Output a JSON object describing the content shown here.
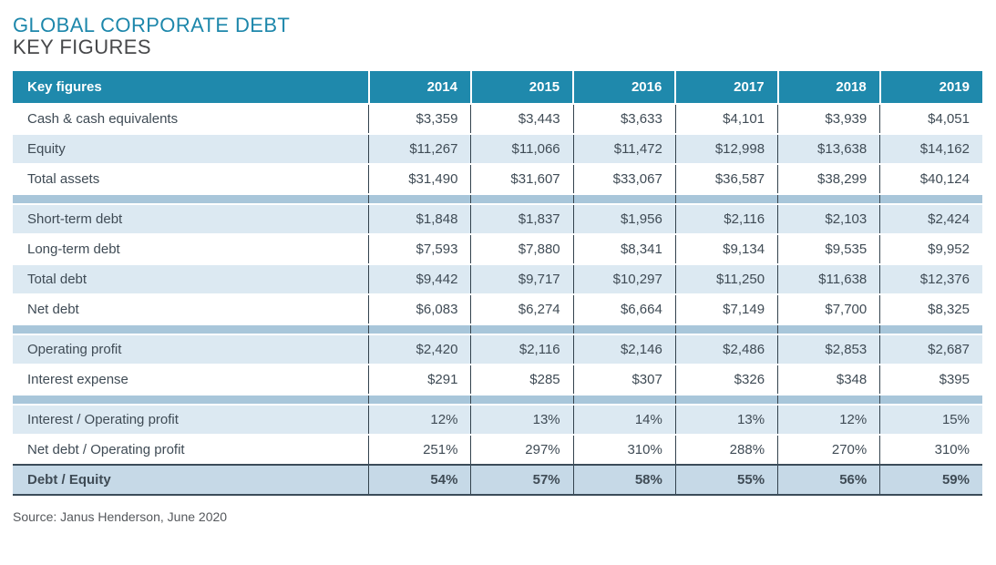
{
  "page": {
    "title": "GLOBAL CORPORATE DEBT",
    "subtitle": "KEY FIGURES",
    "source": "Source: Janus Henderson, June 2020"
  },
  "colors": {
    "header_teal": "#1f89ac",
    "row_light_blue": "#dce9f2",
    "section_band_blue": "#a8c6da",
    "total_row_blue": "#c6d9e7",
    "title_teal": "#1d87ab",
    "grid_line": "#33424d"
  },
  "chart_data": {
    "type": "table",
    "title": "GLOBAL CORPORATE DEBT",
    "subtitle": "KEY FIGURES",
    "header_label": "Key figures",
    "years": [
      "2014",
      "2015",
      "2016",
      "2017",
      "2018",
      "2019"
    ],
    "sections": [
      {
        "rows": [
          {
            "label": "Cash & cash equivalents",
            "values": [
              "$3,359",
              "$3,443",
              "$3,633",
              "$4,101",
              "$3,939",
              "$4,051"
            ]
          },
          {
            "label": "Equity",
            "values": [
              "$11,267",
              "$11,066",
              "$11,472",
              "$12,998",
              "$13,638",
              "$14,162"
            ]
          },
          {
            "label": "Total assets",
            "values": [
              "$31,490",
              "$31,607",
              "$33,067",
              "$36,587",
              "$38,299",
              "$40,124"
            ]
          }
        ]
      },
      {
        "rows": [
          {
            "label": "Short-term debt",
            "values": [
              "$1,848",
              "$1,837",
              "$1,956",
              "$2,116",
              "$2,103",
              "$2,424"
            ]
          },
          {
            "label": "Long-term debt",
            "values": [
              "$7,593",
              "$7,880",
              "$8,341",
              "$9,134",
              "$9,535",
              "$9,952"
            ]
          },
          {
            "label": "Total debt",
            "values": [
              "$9,442",
              "$9,717",
              "$10,297",
              "$11,250",
              "$11,638",
              "$12,376"
            ]
          },
          {
            "label": "Net debt",
            "values": [
              "$6,083",
              "$6,274",
              "$6,664",
              "$7,149",
              "$7,700",
              "$8,325"
            ]
          }
        ]
      },
      {
        "rows": [
          {
            "label": "Operating profit",
            "values": [
              "$2,420",
              "$2,116",
              "$2,146",
              "$2,486",
              "$2,853",
              "$2,687"
            ]
          },
          {
            "label": "Interest expense",
            "values": [
              "$291",
              "$285",
              "$307",
              "$326",
              "$348",
              "$395"
            ]
          }
        ]
      },
      {
        "rows": [
          {
            "label": "Interest / Operating profit",
            "values": [
              "12%",
              "13%",
              "14%",
              "13%",
              "12%",
              "15%"
            ]
          },
          {
            "label": "Net debt / Operating profit",
            "values": [
              "251%",
              "297%",
              "310%",
              "288%",
              "270%",
              "310%"
            ]
          },
          {
            "label": "Debt / Equity",
            "values": [
              "54%",
              "57%",
              "58%",
              "55%",
              "56%",
              "59%"
            ],
            "emphasis": true
          }
        ]
      }
    ]
  }
}
